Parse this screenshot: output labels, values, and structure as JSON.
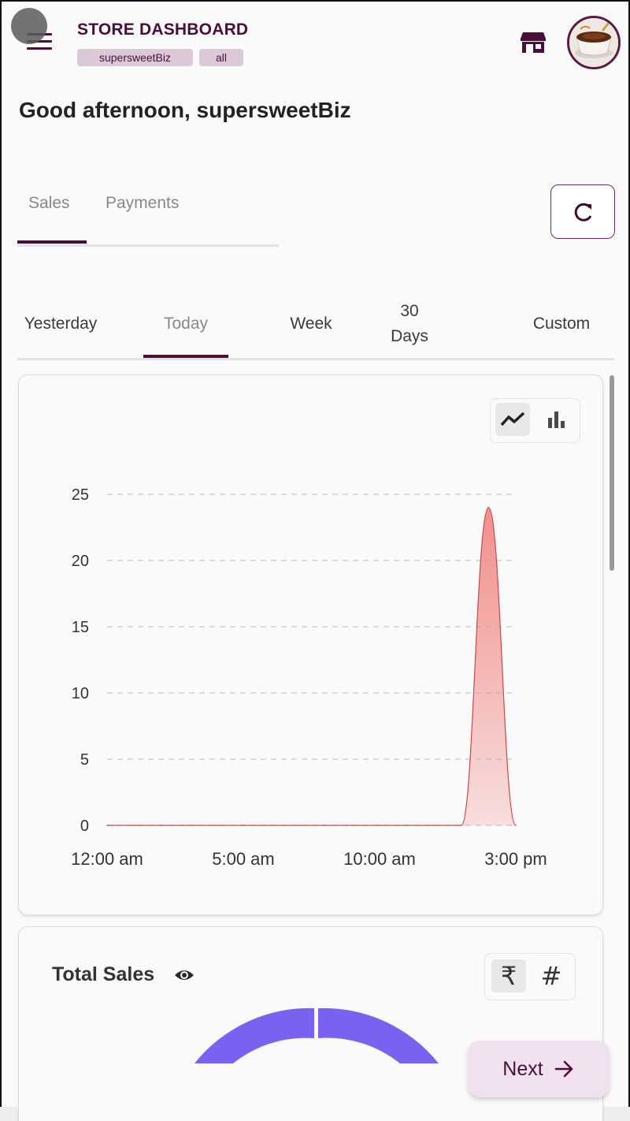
{
  "header": {
    "title": "STORE DASHBOARD",
    "chips": [
      "supersweetBiz",
      "all"
    ],
    "store_icon": "storefront-icon",
    "avatar_icon": "coffee-cup-avatar",
    "accent_color": "#4a0d3c"
  },
  "greeting": "Good afternoon, supersweetBiz",
  "main_tabs": [
    {
      "label": "Sales",
      "selected": true
    },
    {
      "label": "Payments",
      "selected": false
    }
  ],
  "refresh_icon": "refresh-icon",
  "period_tabs": [
    {
      "label": "Yesterday",
      "selected": false
    },
    {
      "label": "Today",
      "selected": true
    },
    {
      "label": "Week",
      "selected": false
    },
    {
      "label": "30 Days",
      "selected": false
    },
    {
      "label": "Custom",
      "selected": false
    }
  ],
  "chart_toggle": {
    "options": [
      "line-chart-icon",
      "bar-chart-icon"
    ],
    "selected": "line-chart-icon"
  },
  "chart_data": {
    "type": "area",
    "x": [
      "12:00 am",
      "1:00 am",
      "2:00 am",
      "3:00 am",
      "4:00 am",
      "5:00 am",
      "6:00 am",
      "7:00 am",
      "8:00 am",
      "9:00 am",
      "10:00 am",
      "11:00 am",
      "12:00 pm",
      "1:00 pm",
      "2:00 pm",
      "3:00 pm"
    ],
    "values": [
      0,
      0,
      0,
      0,
      0,
      0,
      0,
      0,
      0,
      0,
      0,
      0,
      0,
      0,
      24,
      0
    ],
    "x_tick_labels": [
      "12:00 am",
      "5:00 am",
      "10:00 am",
      "3:00 pm"
    ],
    "y_ticks": [
      0,
      5,
      10,
      15,
      20,
      25
    ],
    "ylim": [
      0,
      25
    ],
    "grid": "horizontal dashed",
    "series_color": "#f08a86",
    "title": "",
    "xlabel": "",
    "ylabel": ""
  },
  "total_sales": {
    "title": "Total Sales",
    "eye_icon": "eye-icon",
    "toggle": {
      "options": [
        "₹",
        "#"
      ],
      "selected": "₹"
    },
    "gauge_color": "#7b61f0"
  },
  "next_button": {
    "label": "Next",
    "icon": "arrow-right-icon"
  }
}
